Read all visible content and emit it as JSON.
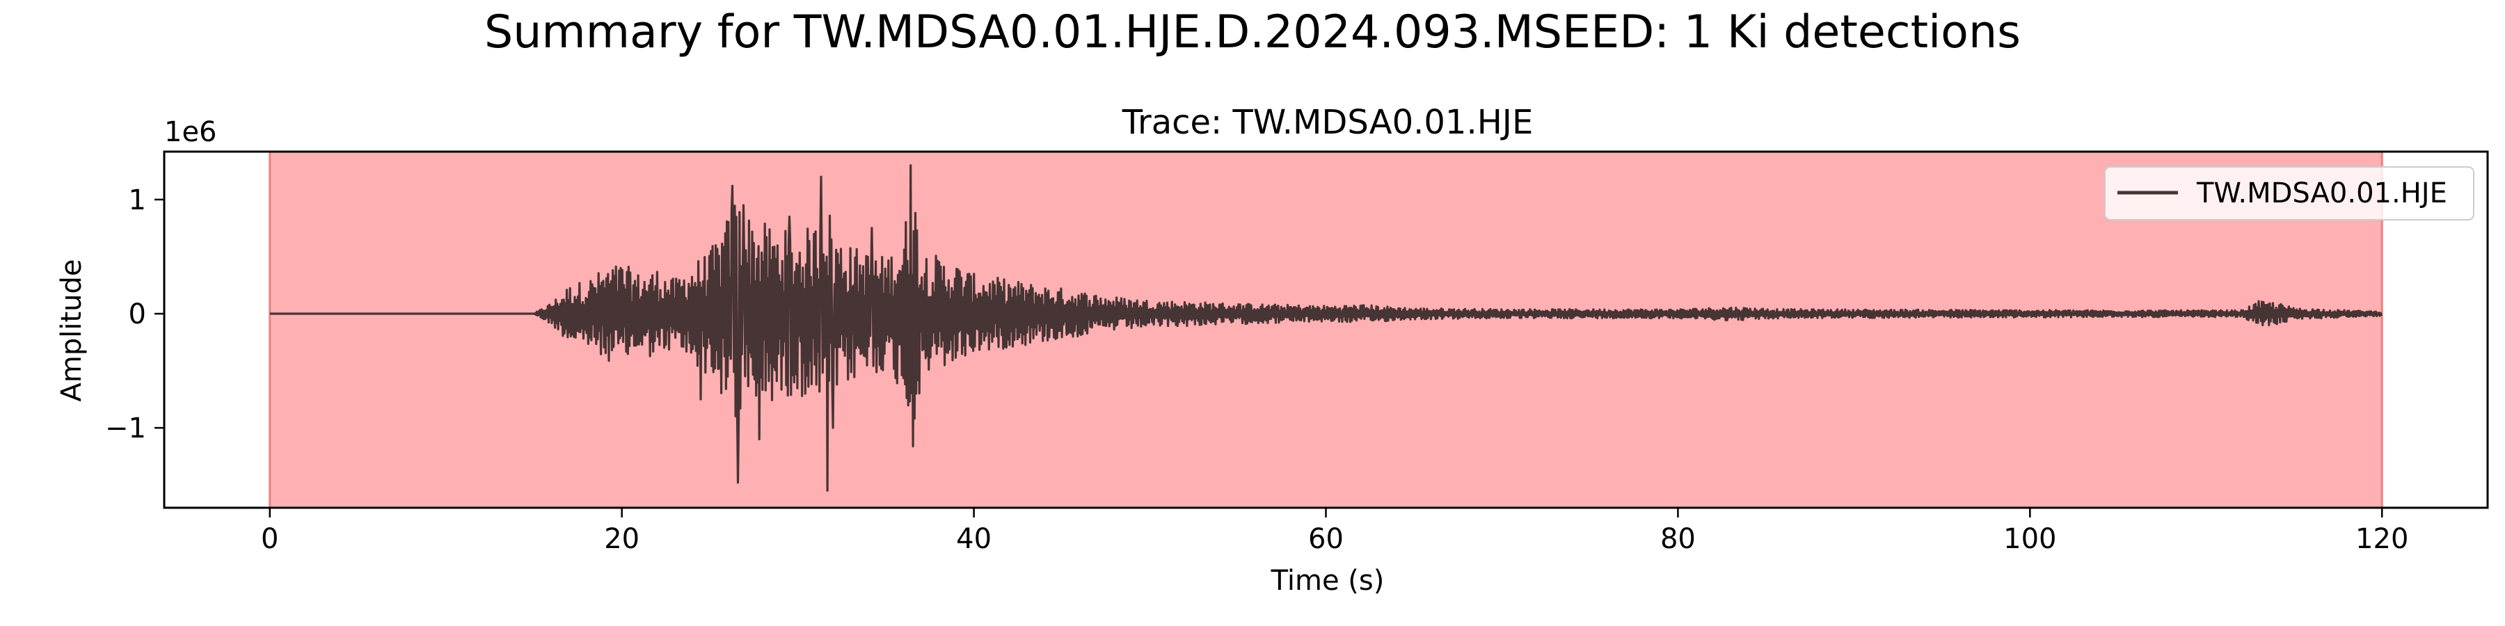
{
  "chart_data": {
    "type": "line",
    "title": "Summary for TW.MDSA0.01.HJE.D.2024.093.MSEED: 1 Ki detections",
    "subtitle": "Trace: TW.MDSA0.01.HJE",
    "xlabel": "Time (s)",
    "ylabel": "Amplitude",
    "y_offset_label": "1e6",
    "xlim": [
      -6,
      126
    ],
    "ylim": [
      -1.7,
      1.42
    ],
    "x_ticks": [
      0,
      20,
      40,
      60,
      80,
      100,
      120
    ],
    "x_tick_labels": [
      "0",
      "20",
      "40",
      "60",
      "80",
      "100",
      "120"
    ],
    "y_ticks": [
      1,
      0,
      -1
    ],
    "y_tick_labels": [
      "1",
      "0",
      "−1"
    ],
    "grid": false,
    "legend_position": "top-right",
    "detection_span": {
      "label": "Ki",
      "x_start": 0,
      "x_end": 120,
      "color": "#ffb0b3",
      "edge_color": "#f08080"
    },
    "series": [
      {
        "name": "TW.MDSA0.01.HJE",
        "color": "#473434",
        "envelope": [
          [
            0,
            0.0
          ],
          [
            15,
            0.0
          ],
          [
            15.5,
            0.05
          ],
          [
            16,
            0.1
          ],
          [
            17,
            0.25
          ],
          [
            18,
            0.3
          ],
          [
            19,
            0.4
          ],
          [
            20,
            0.45
          ],
          [
            21,
            0.35
          ],
          [
            22,
            0.4
          ],
          [
            23,
            0.3
          ],
          [
            24,
            0.45
          ],
          [
            25,
            0.55
          ],
          [
            26,
            0.85
          ],
          [
            26.5,
            1.1
          ],
          [
            27,
            0.9
          ],
          [
            28,
            0.8
          ],
          [
            29,
            0.75
          ],
          [
            30,
            0.7
          ],
          [
            31,
            0.8
          ],
          [
            31.5,
            1.2
          ],
          [
            32,
            0.75
          ],
          [
            33,
            0.6
          ],
          [
            34,
            0.55
          ],
          [
            35,
            0.5
          ],
          [
            36,
            0.7
          ],
          [
            36.5,
            1.25
          ],
          [
            37,
            0.6
          ],
          [
            38,
            0.5
          ],
          [
            39,
            0.45
          ],
          [
            40,
            0.35
          ],
          [
            42,
            0.3
          ],
          [
            44,
            0.25
          ],
          [
            46,
            0.2
          ],
          [
            48,
            0.15
          ],
          [
            50,
            0.12
          ],
          [
            55,
            0.09
          ],
          [
            60,
            0.07
          ],
          [
            62,
            0.08
          ],
          [
            65,
            0.05
          ],
          [
            70,
            0.04
          ],
          [
            80,
            0.04
          ],
          [
            83,
            0.06
          ],
          [
            86,
            0.04
          ],
          [
            95,
            0.035
          ],
          [
            105,
            0.03
          ],
          [
            112,
            0.03
          ],
          [
            113,
            0.11
          ],
          [
            114,
            0.1
          ],
          [
            115,
            0.05
          ],
          [
            118,
            0.03
          ],
          [
            120,
            0.02
          ]
        ],
        "peaks": [
          [
            26.3,
            1.12
          ],
          [
            26.6,
            -1.48
          ],
          [
            26.9,
            0.95
          ],
          [
            31.3,
            1.2
          ],
          [
            31.7,
            -1.55
          ],
          [
            32.0,
            -1.0
          ],
          [
            36.4,
            1.3
          ],
          [
            36.7,
            -0.7
          ],
          [
            27.8,
            -1.1
          ],
          [
            29.5,
            0.85
          ],
          [
            34.2,
            0.75
          ],
          [
            24.5,
            -0.75
          ]
        ]
      }
    ]
  }
}
